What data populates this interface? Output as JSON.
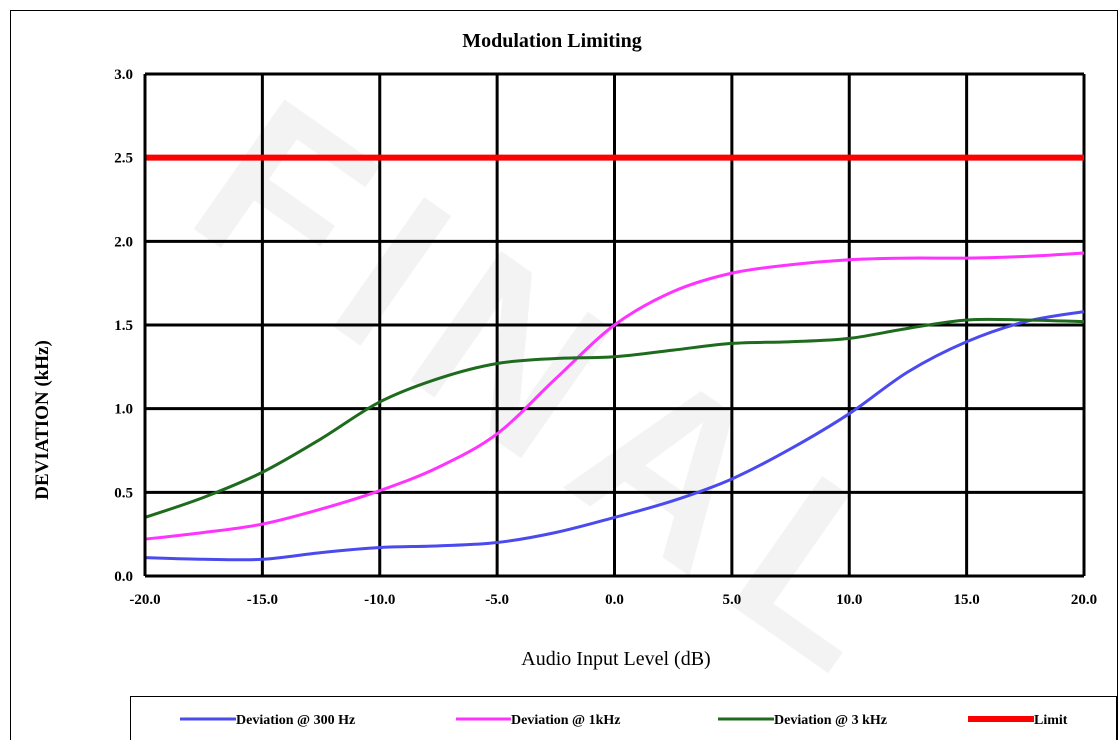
{
  "watermark": "FINAL",
  "chart_data": {
    "type": "line",
    "title": "Modulation Limiting",
    "xlabel": "Audio Input Level (dB)",
    "ylabel": "DEVIATION (kHz)",
    "xlim": [
      -20,
      20
    ],
    "ylim": [
      0,
      3
    ],
    "x_ticks": [
      "-20.0",
      "-15.0",
      "-10.0",
      "-5.0",
      "0.0",
      "5.0",
      "10.0",
      "15.0",
      "20.0"
    ],
    "y_ticks": [
      "0.0",
      "0.5",
      "1.0",
      "1.5",
      "2.0",
      "2.5",
      "3.0"
    ],
    "grid": true,
    "legend_position": "bottom",
    "series": [
      {
        "name": "Deviation @ 300 Hz",
        "color": "#4a4aee",
        "x": [
          -20,
          -17.5,
          -15,
          -12.5,
          -10,
          -7.5,
          -5,
          -2.5,
          0,
          2.5,
          5,
          7.5,
          10,
          12.5,
          15,
          17.5,
          20
        ],
        "y": [
          0.11,
          0.1,
          0.1,
          0.14,
          0.17,
          0.18,
          0.2,
          0.26,
          0.35,
          0.45,
          0.58,
          0.76,
          0.97,
          1.22,
          1.4,
          1.52,
          1.58
        ]
      },
      {
        "name": "Deviation @ 1kHz",
        "color": "#ff33ff",
        "x": [
          -20,
          -17.5,
          -15,
          -12.5,
          -10,
          -7.5,
          -5,
          -2.5,
          0,
          2.5,
          5,
          7.5,
          10,
          12.5,
          15,
          17.5,
          20
        ],
        "y": [
          0.22,
          0.26,
          0.31,
          0.4,
          0.51,
          0.65,
          0.85,
          1.18,
          1.5,
          1.7,
          1.81,
          1.86,
          1.89,
          1.9,
          1.9,
          1.91,
          1.93
        ]
      },
      {
        "name": "Deviation @ 3 kHz",
        "color": "#1e6b1e",
        "x": [
          -20,
          -17.5,
          -15,
          -12.5,
          -10,
          -7.5,
          -5,
          -2.5,
          0,
          2.5,
          5,
          7.5,
          10,
          12.5,
          15,
          17.5,
          20
        ],
        "y": [
          0.35,
          0.47,
          0.62,
          0.82,
          1.04,
          1.18,
          1.27,
          1.3,
          1.31,
          1.35,
          1.39,
          1.4,
          1.42,
          1.48,
          1.53,
          1.53,
          1.52
        ]
      },
      {
        "name": "Limit",
        "color": "#ff0000",
        "x": [
          -20,
          20
        ],
        "y": [
          2.5,
          2.5
        ]
      }
    ]
  }
}
